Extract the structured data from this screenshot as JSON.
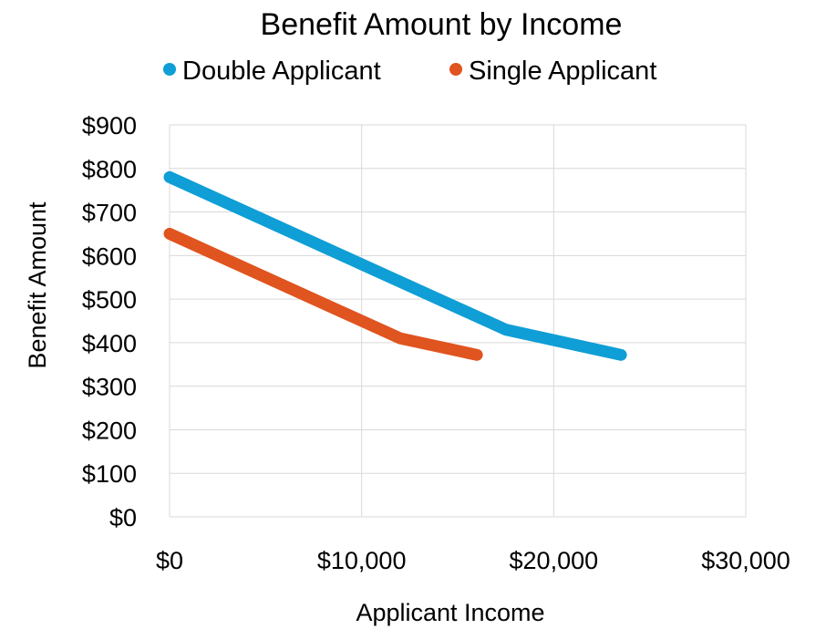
{
  "chart_data": {
    "type": "line",
    "title": "Benefit Amount by Income",
    "xlabel": "Applicant Income",
    "ylabel": "Benefit  Amount",
    "xlim": [
      0,
      30000
    ],
    "ylim": [
      0,
      900
    ],
    "xticks": [
      {
        "value": 0,
        "label": "$0"
      },
      {
        "value": 10000,
        "label": "$10,000"
      },
      {
        "value": 20000,
        "label": "$20,000"
      },
      {
        "value": 30000,
        "label": "$30,000"
      }
    ],
    "yticks": [
      {
        "value": 0,
        "label": "$0"
      },
      {
        "value": 100,
        "label": "$100"
      },
      {
        "value": 200,
        "label": "$200"
      },
      {
        "value": 300,
        "label": "$300"
      },
      {
        "value": 400,
        "label": "$400"
      },
      {
        "value": 500,
        "label": "$500"
      },
      {
        "value": 600,
        "label": "$600"
      },
      {
        "value": 700,
        "label": "$700"
      },
      {
        "value": 800,
        "label": "$800"
      },
      {
        "value": 900,
        "label": "$900"
      }
    ],
    "grid": true,
    "legend_position": "top",
    "series": [
      {
        "name": "Double Applicant",
        "color": "#0f9ed5",
        "x": [
          0,
          10000,
          17500,
          23500
        ],
        "y": [
          780,
          580,
          430,
          372
        ]
      },
      {
        "name": "Single Applicant",
        "color": "#e0541f",
        "x": [
          0,
          12000,
          16000
        ],
        "y": [
          650,
          410,
          372
        ]
      }
    ]
  }
}
